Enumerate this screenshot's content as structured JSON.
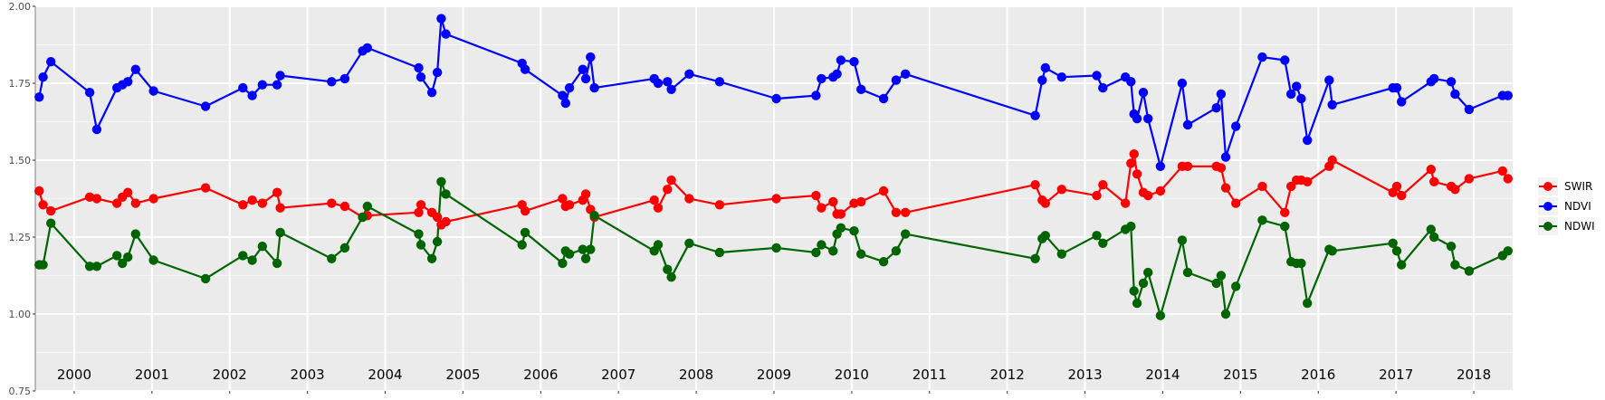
{
  "chart_data": {
    "type": "line",
    "title": "",
    "xlabel": "",
    "ylabel": "",
    "ylim": [
      0.75,
      2.0
    ],
    "y_ticks": [
      "0.75",
      "1.00",
      "1.25",
      "1.50",
      "1.75",
      "2.00"
    ],
    "x_range": [
      1999.5,
      2018.5
    ],
    "year_labels": [
      "2000",
      "2001",
      "2002",
      "2003",
      "2004",
      "2005",
      "2006",
      "2007",
      "2008",
      "2009",
      "2010",
      "2011",
      "2012",
      "2013",
      "2014",
      "2015",
      "2016",
      "2017",
      "2018"
    ],
    "grid": true,
    "legend_position": "right",
    "series": [
      {
        "name": "SWIR",
        "color": "#ff0000",
        "x": [
          1999.55,
          1999.6,
          1999.7,
          2000.2,
          2000.29,
          2000.55,
          2000.62,
          2000.69,
          2000.79,
          2001.02,
          2001.69,
          2002.17,
          2002.29,
          2002.42,
          2002.61,
          2002.65,
          2003.31,
          2003.48,
          2003.71,
          2003.77,
          2004.43,
          2004.46,
          2004.6,
          2004.67,
          2004.72,
          2004.78,
          2005.76,
          2005.8,
          2006.28,
          2006.32,
          2006.37,
          2006.54,
          2006.58,
          2006.64,
          2006.69,
          2007.46,
          2007.51,
          2007.63,
          2007.68,
          2007.91,
          2008.3,
          2009.03,
          2009.54,
          2009.61,
          2009.76,
          2009.81,
          2009.86,
          2010.03,
          2010.12,
          2010.41,
          2010.57,
          2010.69,
          2012.36,
          2012.45,
          2012.49,
          2012.7,
          2013.15,
          2013.23,
          2013.52,
          2013.59,
          2013.63,
          2013.67,
          2013.75,
          2013.81,
          2013.97,
          2014.25,
          2014.32,
          2014.69,
          2014.75,
          2014.81,
          2014.94,
          2015.28,
          2015.57,
          2015.65,
          2015.72,
          2015.78,
          2015.86,
          2016.14,
          2016.18,
          2016.96,
          2017.01,
          2017.07,
          2017.45,
          2017.49,
          2017.71,
          2017.76,
          2017.94,
          2018.37,
          2018.44
        ],
        "y": [
          1.4,
          1.355,
          1.335,
          1.38,
          1.375,
          1.36,
          1.38,
          1.395,
          1.36,
          1.375,
          1.41,
          1.355,
          1.37,
          1.36,
          1.395,
          1.345,
          1.36,
          1.35,
          1.315,
          1.32,
          1.33,
          1.355,
          1.33,
          1.315,
          1.29,
          1.3,
          1.355,
          1.335,
          1.375,
          1.35,
          1.355,
          1.37,
          1.39,
          1.34,
          1.315,
          1.37,
          1.345,
          1.405,
          1.435,
          1.375,
          1.355,
          1.375,
          1.385,
          1.345,
          1.365,
          1.325,
          1.325,
          1.36,
          1.365,
          1.4,
          1.33,
          1.33,
          1.42,
          1.37,
          1.36,
          1.405,
          1.385,
          1.42,
          1.36,
          1.49,
          1.52,
          1.455,
          1.395,
          1.385,
          1.4,
          1.48,
          1.48,
          1.48,
          1.475,
          1.41,
          1.36,
          1.415,
          1.33,
          1.415,
          1.435,
          1.435,
          1.43,
          1.48,
          1.5,
          1.395,
          1.415,
          1.385,
          1.47,
          1.43,
          1.415,
          1.405,
          1.44,
          1.465,
          1.44
        ]
      },
      {
        "name": "NDVI",
        "color": "#0000ff",
        "x": [
          1999.55,
          1999.6,
          1999.7,
          2000.2,
          2000.29,
          2000.55,
          2000.62,
          2000.69,
          2000.79,
          2001.02,
          2001.69,
          2002.17,
          2002.29,
          2002.42,
          2002.61,
          2002.65,
          2003.31,
          2003.48,
          2003.71,
          2003.77,
          2004.43,
          2004.46,
          2004.6,
          2004.67,
          2004.72,
          2004.78,
          2005.76,
          2005.8,
          2006.28,
          2006.32,
          2006.37,
          2006.54,
          2006.58,
          2006.64,
          2006.69,
          2007.46,
          2007.51,
          2007.63,
          2007.68,
          2007.91,
          2008.3,
          2009.03,
          2009.54,
          2009.61,
          2009.76,
          2009.81,
          2009.86,
          2010.03,
          2010.12,
          2010.41,
          2010.57,
          2010.69,
          2012.36,
          2012.45,
          2012.49,
          2012.7,
          2013.15,
          2013.23,
          2013.52,
          2013.59,
          2013.63,
          2013.67,
          2013.75,
          2013.81,
          2013.97,
          2014.25,
          2014.32,
          2014.69,
          2014.75,
          2014.81,
          2014.94,
          2015.28,
          2015.57,
          2015.65,
          2015.72,
          2015.78,
          2015.86,
          2016.14,
          2016.18,
          2016.96,
          2017.01,
          2017.07,
          2017.45,
          2017.49,
          2017.71,
          2017.76,
          2017.94,
          2018.37,
          2018.44
        ],
        "y": [
          1.705,
          1.77,
          1.82,
          1.72,
          1.6,
          1.735,
          1.745,
          1.755,
          1.795,
          1.725,
          1.675,
          1.735,
          1.71,
          1.745,
          1.745,
          1.775,
          1.755,
          1.765,
          1.855,
          1.865,
          1.8,
          1.77,
          1.72,
          1.785,
          1.96,
          1.91,
          1.815,
          1.795,
          1.71,
          1.685,
          1.735,
          1.795,
          1.765,
          1.835,
          1.735,
          1.765,
          1.75,
          1.755,
          1.73,
          1.78,
          1.755,
          1.7,
          1.71,
          1.765,
          1.77,
          1.78,
          1.825,
          1.82,
          1.73,
          1.7,
          1.76,
          1.78,
          1.645,
          1.76,
          1.8,
          1.77,
          1.775,
          1.735,
          1.77,
          1.755,
          1.65,
          1.635,
          1.72,
          1.635,
          1.48,
          1.75,
          1.615,
          1.67,
          1.715,
          1.51,
          1.61,
          1.835,
          1.825,
          1.715,
          1.74,
          1.7,
          1.565,
          1.76,
          1.68,
          1.735,
          1.735,
          1.69,
          1.755,
          1.765,
          1.755,
          1.715,
          1.665,
          1.71,
          1.71
        ]
      },
      {
        "name": "NDWI",
        "color": "#006400",
        "x": [
          1999.55,
          1999.6,
          1999.7,
          2000.2,
          2000.29,
          2000.55,
          2000.62,
          2000.69,
          2000.79,
          2001.02,
          2001.69,
          2002.17,
          2002.29,
          2002.42,
          2002.61,
          2002.65,
          2003.31,
          2003.48,
          2003.71,
          2003.77,
          2004.43,
          2004.46,
          2004.6,
          2004.67,
          2004.72,
          2004.78,
          2005.76,
          2005.8,
          2006.28,
          2006.32,
          2006.37,
          2006.54,
          2006.58,
          2006.64,
          2006.69,
          2007.46,
          2007.51,
          2007.63,
          2007.68,
          2007.91,
          2008.3,
          2009.03,
          2009.54,
          2009.61,
          2009.76,
          2009.81,
          2009.86,
          2010.03,
          2010.12,
          2010.41,
          2010.57,
          2010.69,
          2012.36,
          2012.45,
          2012.49,
          2012.7,
          2013.15,
          2013.23,
          2013.52,
          2013.59,
          2013.63,
          2013.67,
          2013.75,
          2013.81,
          2013.97,
          2014.25,
          2014.32,
          2014.69,
          2014.75,
          2014.81,
          2014.94,
          2015.28,
          2015.57,
          2015.65,
          2015.72,
          2015.78,
          2015.86,
          2016.14,
          2016.18,
          2016.96,
          2017.01,
          2017.07,
          2017.45,
          2017.49,
          2017.71,
          2017.76,
          2017.94,
          2018.37,
          2018.44
        ],
        "y": [
          1.16,
          1.16,
          1.295,
          1.155,
          1.155,
          1.19,
          1.165,
          1.185,
          1.26,
          1.175,
          1.115,
          1.19,
          1.175,
          1.22,
          1.165,
          1.265,
          1.18,
          1.215,
          1.315,
          1.35,
          1.26,
          1.225,
          1.18,
          1.235,
          1.43,
          1.39,
          1.225,
          1.265,
          1.165,
          1.205,
          1.195,
          1.21,
          1.18,
          1.21,
          1.32,
          1.205,
          1.225,
          1.145,
          1.12,
          1.23,
          1.2,
          1.215,
          1.2,
          1.225,
          1.205,
          1.26,
          1.28,
          1.27,
          1.195,
          1.17,
          1.205,
          1.26,
          1.18,
          1.245,
          1.255,
          1.195,
          1.255,
          1.23,
          1.275,
          1.285,
          1.075,
          1.035,
          1.1,
          1.135,
          0.995,
          1.24,
          1.135,
          1.1,
          1.125,
          1.0,
          1.09,
          1.305,
          1.285,
          1.17,
          1.165,
          1.165,
          1.035,
          1.21,
          1.205,
          1.23,
          1.205,
          1.16,
          1.275,
          1.25,
          1.22,
          1.16,
          1.14,
          1.19,
          1.205
        ]
      }
    ]
  }
}
